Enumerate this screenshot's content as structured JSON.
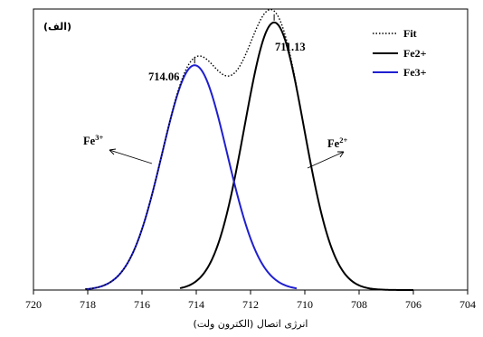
{
  "chart_data": {
    "type": "line",
    "panel_label": "(الف)",
    "xlabel": "انرژی اتصال (الکترون ولت)",
    "x_axis_reversed": true,
    "xlim": [
      704,
      720
    ],
    "xticks": [
      "720",
      "718",
      "716",
      "714",
      "712",
      "710",
      "708",
      "706",
      "704"
    ],
    "ylim": [
      0,
      1.05
    ],
    "y_ticks_shown": false,
    "grid": false,
    "legend": {
      "placement": "top-right",
      "entries": [
        {
          "label": "Fit",
          "style": "dotted",
          "color": "#000000"
        },
        {
          "label": "Fe2+",
          "style": "solid",
          "color": "#000000"
        },
        {
          "label": "Fe3+",
          "style": "solid",
          "color": "#1f1fd0"
        }
      ]
    },
    "series": [
      {
        "name": "Fe2+",
        "color": "#000000",
        "peak_center": 711.13,
        "peak_height": 1.0,
        "sigma": 1.1,
        "x_range": [
          706,
          714.6
        ]
      },
      {
        "name": "Fe3+",
        "color": "#1f1fd0",
        "peak_center": 714.06,
        "peak_height": 0.84,
        "sigma": 1.2,
        "x_range": [
          710.3,
          718.1
        ]
      },
      {
        "name": "Fit",
        "color": "#000000",
        "style": "dotted",
        "type": "sum",
        "x_range": [
          710.3,
          718.1
        ]
      }
    ],
    "peak_labels": [
      {
        "text": "711.13",
        "x": 711.13
      },
      {
        "text": "714.06",
        "x": 714.06
      }
    ],
    "annotations": [
      {
        "base": "Fe",
        "sup": "3+",
        "series": "Fe3+"
      },
      {
        "base": "Fe",
        "sup": "2+",
        "series": "Fe2+"
      }
    ]
  }
}
